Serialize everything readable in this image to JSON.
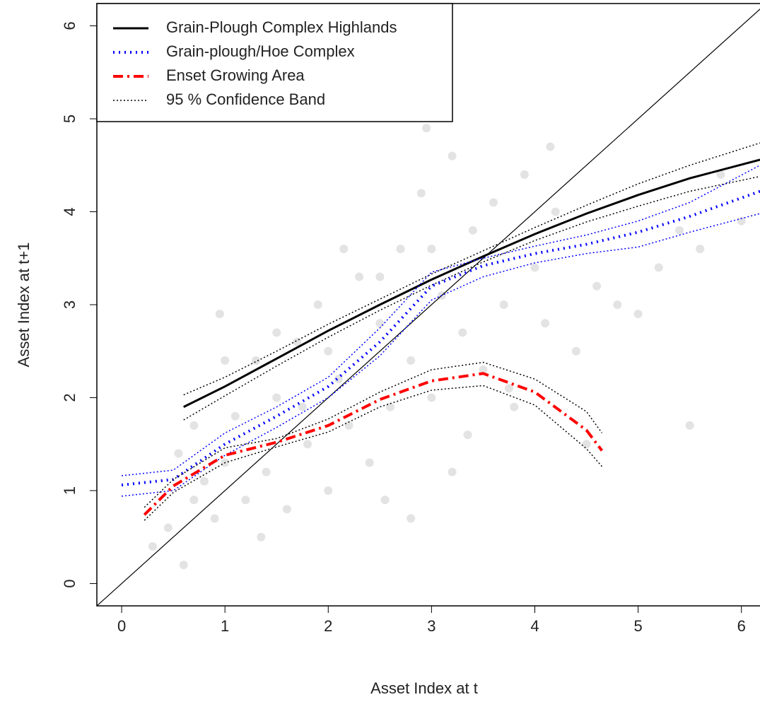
{
  "chart_data": {
    "type": "scatter",
    "xlabel": "Asset Index at t",
    "ylabel": "Asset Index at t+1",
    "xlim": [
      -0.24,
      6.18
    ],
    "ylim": [
      -0.24,
      6.24
    ],
    "xticks": [
      0,
      1,
      2,
      3,
      4,
      5,
      6
    ],
    "yticks": [
      0,
      1,
      2,
      3,
      4,
      5,
      6
    ],
    "legend": "top-left",
    "points": {
      "color": "#b0b0b0",
      "x": [
        0.3,
        0.45,
        0.6,
        0.7,
        0.8,
        0.9,
        1.0,
        1.1,
        1.2,
        1.3,
        1.4,
        1.5,
        1.6,
        1.7,
        1.8,
        1.9,
        2.0,
        2.1,
        2.2,
        2.3,
        2.4,
        2.5,
        2.6,
        2.7,
        2.8,
        2.9,
        3.0,
        3.1,
        3.2,
        3.3,
        3.4,
        3.5,
        3.6,
        3.7,
        3.8,
        3.9,
        4.0,
        4.1,
        4.2,
        4.4,
        4.6,
        4.8,
        5.0,
        5.2,
        5.4,
        5.6,
        5.8,
        6.0,
        0.55,
        0.95,
        1.35,
        1.75,
        2.15,
        2.55,
        2.95,
        3.35,
        3.75,
        4.15,
        2.0,
        2.5,
        3.0,
        3.2,
        2.8,
        1.5,
        1.0,
        0.7,
        4.5,
        5.5
      ],
      "y": [
        0.4,
        0.6,
        0.2,
        0.9,
        1.1,
        0.7,
        1.3,
        1.8,
        0.9,
        2.4,
        1.2,
        2.0,
        0.8,
        2.6,
        1.5,
        3.0,
        1.0,
        2.2,
        1.7,
        3.3,
        1.3,
        2.8,
        1.9,
        3.6,
        2.4,
        4.2,
        2.0,
        3.1,
        4.6,
        2.7,
        3.8,
        2.3,
        4.1,
        3.0,
        1.9,
        4.4,
        3.4,
        2.8,
        4.0,
        2.5,
        3.2,
        3.0,
        2.9,
        3.4,
        3.8,
        3.6,
        4.4,
        3.9,
        1.4,
        2.9,
        0.5,
        1.9,
        3.6,
        0.9,
        4.9,
        1.6,
        2.1,
        4.7,
        2.5,
        3.3,
        3.6,
        1.2,
        0.7,
        2.7,
        2.4,
        1.7,
        1.5,
        1.7
      ]
    },
    "series": [
      {
        "name": "Grain-Plough Complex Highlands",
        "color": "#000000",
        "dash": "solid",
        "x": [
          0.6,
          1,
          1.5,
          2,
          2.5,
          3,
          3.5,
          4,
          4.5,
          5,
          5.5,
          6.18
        ],
        "y": [
          1.9,
          2.12,
          2.42,
          2.72,
          3.0,
          3.27,
          3.52,
          3.76,
          3.98,
          4.18,
          4.36,
          4.56
        ],
        "upper": [
          2.03,
          2.22,
          2.5,
          2.79,
          3.06,
          3.33,
          3.58,
          3.83,
          4.07,
          4.3,
          4.5,
          4.74
        ],
        "lower": [
          1.76,
          2.02,
          2.34,
          2.65,
          2.94,
          3.21,
          3.46,
          3.69,
          3.89,
          4.06,
          4.22,
          4.38
        ],
        "band_color": "#000000"
      },
      {
        "name": "Grain-plough/Hoe Complex",
        "color": "#0000ff",
        "dash": "dotted",
        "x": [
          0,
          0.5,
          1,
          1.5,
          2,
          2.5,
          3,
          3.5,
          4,
          4.5,
          5,
          5.5,
          6.18
        ],
        "y": [
          1.06,
          1.12,
          1.5,
          1.8,
          2.12,
          2.6,
          3.2,
          3.42,
          3.55,
          3.65,
          3.78,
          3.95,
          4.22
        ],
        "upper": [
          1.16,
          1.22,
          1.62,
          1.9,
          2.22,
          2.75,
          3.35,
          3.5,
          3.63,
          3.75,
          3.9,
          4.1,
          4.5
        ],
        "lower": [
          0.94,
          1.0,
          1.38,
          1.68,
          2.0,
          2.45,
          3.05,
          3.3,
          3.45,
          3.55,
          3.62,
          3.78,
          3.98
        ],
        "band_color": "#0000ff"
      },
      {
        "name": "Enset Growing Area",
        "color": "#ff0000",
        "dash": "dashdot",
        "x": [
          0.22,
          0.5,
          1,
          1.5,
          2,
          2.5,
          3,
          3.5,
          4,
          4.5,
          4.65
        ],
        "y": [
          0.74,
          1.05,
          1.38,
          1.52,
          1.7,
          1.98,
          2.18,
          2.26,
          2.06,
          1.65,
          1.43
        ],
        "upper": [
          0.82,
          1.12,
          1.46,
          1.56,
          1.77,
          2.06,
          2.3,
          2.38,
          2.2,
          1.85,
          1.62
        ],
        "lower": [
          0.68,
          0.98,
          1.3,
          1.47,
          1.63,
          1.9,
          2.08,
          2.13,
          1.92,
          1.45,
          1.26
        ],
        "band_color": "#000000"
      }
    ],
    "band_legend": {
      "name": "95 % Confidence Band",
      "color": "#000000",
      "dash": "dotted"
    },
    "reference_line": {
      "x": [
        -0.24,
        6.24
      ],
      "y": [
        -0.24,
        6.24
      ],
      "color": "#000000"
    }
  }
}
